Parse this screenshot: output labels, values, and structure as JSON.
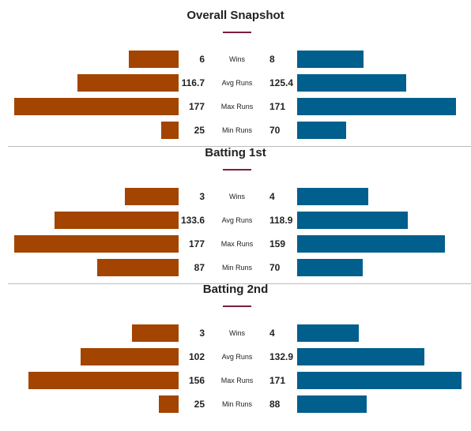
{
  "chart_data": {
    "type": "bar",
    "colors": {
      "left": "#a34400",
      "right": "#005f8c",
      "accent": "#7b1f3a"
    },
    "sections": [
      {
        "title": "Overall Snapshot",
        "rows": [
          {
            "label": "Wins",
            "left": 6,
            "right": 8,
            "left_text": "6",
            "right_text": "8"
          },
          {
            "label": "Avg Runs",
            "left": 116.7,
            "right": 125.4,
            "left_text": "116.7",
            "right_text": "125.4"
          },
          {
            "label": "Max Runs",
            "left": 177,
            "right": 171,
            "left_text": "177",
            "right_text": "171"
          },
          {
            "label": "Min Runs",
            "left": 25,
            "right": 70,
            "left_text": "25",
            "right_text": "70"
          }
        ]
      },
      {
        "title": "Batting 1st",
        "rows": [
          {
            "label": "Wins",
            "left": 3,
            "right": 4,
            "left_text": "3",
            "right_text": "4"
          },
          {
            "label": "Avg Runs",
            "left": 133.6,
            "right": 118.9,
            "left_text": "133.6",
            "right_text": "118.9"
          },
          {
            "label": "Max Runs",
            "left": 177,
            "right": 159,
            "left_text": "177",
            "right_text": "159"
          },
          {
            "label": "Min Runs",
            "left": 87,
            "right": 70,
            "left_text": "87",
            "right_text": "70"
          }
        ]
      },
      {
        "title": "Batting 2nd",
        "rows": [
          {
            "label": "Wins",
            "left": 3,
            "right": 4,
            "left_text": "3",
            "right_text": "4"
          },
          {
            "label": "Avg Runs",
            "left": 102,
            "right": 132.9,
            "left_text": "102",
            "right_text": "132.9"
          },
          {
            "label": "Max Runs",
            "left": 156,
            "right": 171,
            "left_text": "156",
            "right_text": "171"
          },
          {
            "label": "Min Runs",
            "left": 25,
            "right": 88,
            "left_text": "25",
            "right_text": "88"
          }
        ]
      }
    ]
  }
}
